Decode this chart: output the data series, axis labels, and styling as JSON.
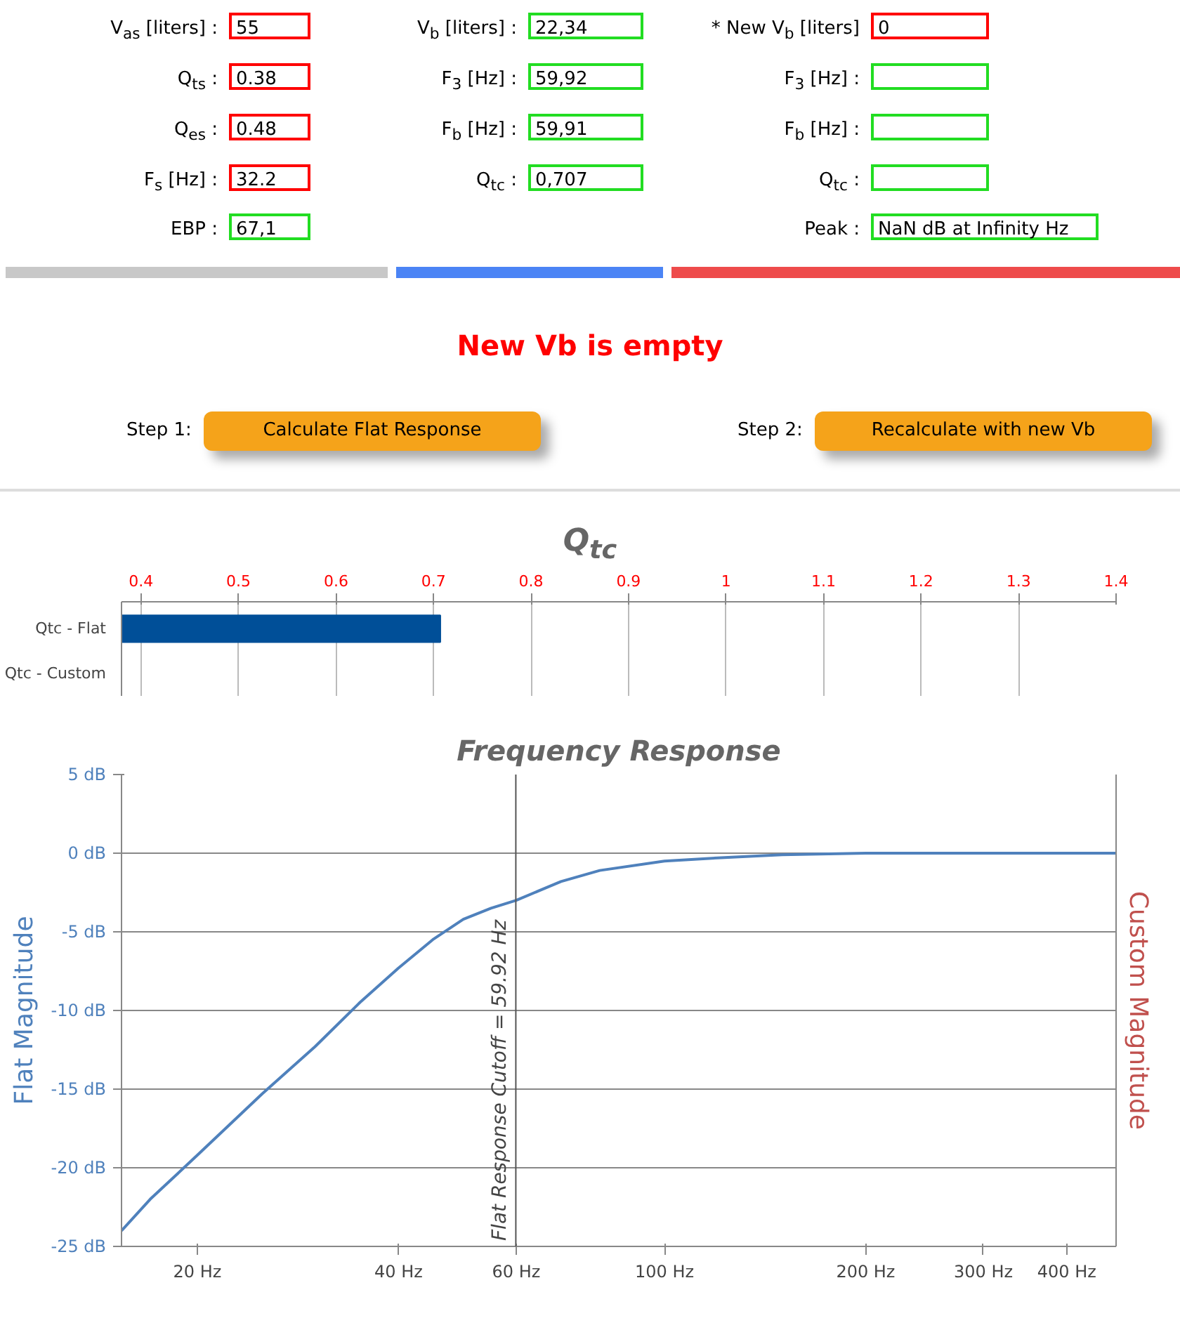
{
  "chart_data": [
    {
      "type": "other",
      "annotations": [
        "V$_{as}$ [liters] :",
        "55",
        "V$_{b}$ [liters] :",
        "22,34",
        "* New V$_{b}$ [liters]",
        "0",
        "Q$_{ts}$ :",
        "0.38",
        "F$_{3}$ [Hz] :",
        "59,92",
        "F$_{3}$ [Hz] :",
        "Q$_{es}$ :",
        "0.48",
        "F$_{b}$ [Hz] :",
        "59,91",
        "F$_{b}$ [Hz] :",
        "F$_{s}$ [Hz] :",
        "32.2",
        "Q$_{tc}$ :",
        "0,707",
        "Q$_{tc}$ :",
        "EBP :",
        "67,1",
        "Peak :",
        "NaN dB at Infinity Hz",
        "New Vb is empty",
        "Step 1:",
        "Calculate Flat Response",
        "Step 2:",
        "Recalculate with new Vb"
      ]
    },
    {
      "type": "bar",
      "orientation": "horizontal",
      "title": "Q$_{tc}$",
      "categories": [
        "Qtc - Flat",
        "Qtc - Custom"
      ],
      "values": [
        0.707,
        null
      ],
      "color": "#004f98",
      "xlim": [
        0.38,
        1.4
      ],
      "xticks": [
        0.4,
        0.5,
        0.6,
        0.7,
        0.8,
        0.9,
        1,
        1.1,
        1.2,
        1.3,
        1.4
      ],
      "grid": "x"
    },
    {
      "type": "line",
      "title": "Frequency Response",
      "x": [
        15.4,
        17,
        20,
        25,
        30,
        35,
        40,
        45,
        50,
        55,
        60,
        70,
        80,
        100,
        120,
        150,
        200,
        300,
        474
      ],
      "series": [
        {
          "color": "#4f81bc",
          "values": [
            -24,
            -22,
            -19.2,
            -15.3,
            -12.3,
            -9.5,
            -7.3,
            -5.5,
            -4.2,
            -3.5,
            -3,
            -1.8,
            -1.1,
            -0.5,
            -0.3,
            -0.1,
            0,
            0,
            0
          ]
        }
      ],
      "log": "x",
      "xlim": [
        15.4,
        474
      ],
      "xticks": [
        {
          "value": 20,
          "label": "20 Hz"
        },
        {
          "value": 40,
          "label": "40 Hz"
        },
        {
          "value": 60,
          "label": "60 Hz"
        },
        {
          "value": 100,
          "label": "100 Hz"
        },
        {
          "value": 200,
          "label": "200 Hz"
        },
        {
          "value": 300,
          "label": "300 Hz"
        },
        {
          "value": 400,
          "label": "400 Hz"
        }
      ],
      "ylim": [
        -25,
        5
      ],
      "yticks": [
        {
          "value": 5,
          "label": "5 dB"
        },
        {
          "value": 0,
          "label": "0 dB"
        },
        {
          "value": -5,
          "label": "-5 dB"
        },
        {
          "value": -10,
          "label": "-10 dB"
        },
        {
          "value": -15,
          "label": "-15 dB"
        },
        {
          "value": -20,
          "label": "-20 dB"
        },
        {
          "value": -25,
          "label": "-25 dB"
        }
      ],
      "ylabel": "Flat Magnitude",
      "y2label": "Custom Magnitude",
      "grid": "y",
      "ref_lines": [
        {
          "axis": "x",
          "value": 59.92,
          "label": "Flat Response Cutoff = 59.92 Hz"
        }
      ]
    }
  ]
}
